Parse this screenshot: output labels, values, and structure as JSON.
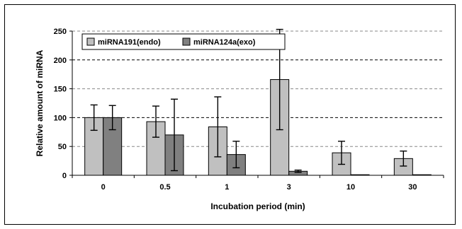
{
  "chart_data": {
    "type": "bar",
    "categories": [
      "0",
      "0.5",
      "1",
      "3",
      "10",
      "30"
    ],
    "series": [
      {
        "name": "miRNA191(endo)",
        "color": "#c0c0c0",
        "values": [
          100,
          93,
          84,
          166,
          39,
          29
        ],
        "errors": [
          22,
          27,
          52,
          87,
          20,
          13
        ]
      },
      {
        "name": "miRNA124a(exo)",
        "color": "#808080",
        "values": [
          100,
          70,
          36,
          7,
          1,
          1
        ],
        "errors": [
          21,
          62,
          23,
          2,
          0,
          0
        ]
      }
    ],
    "xlabel": "Incubation period (min)",
    "ylabel": "Relative amount of miRNA",
    "ylim": [
      0,
      250
    ],
    "yticks": [
      0,
      50,
      100,
      150,
      200,
      250
    ],
    "grid": true,
    "legend": "top-left"
  }
}
